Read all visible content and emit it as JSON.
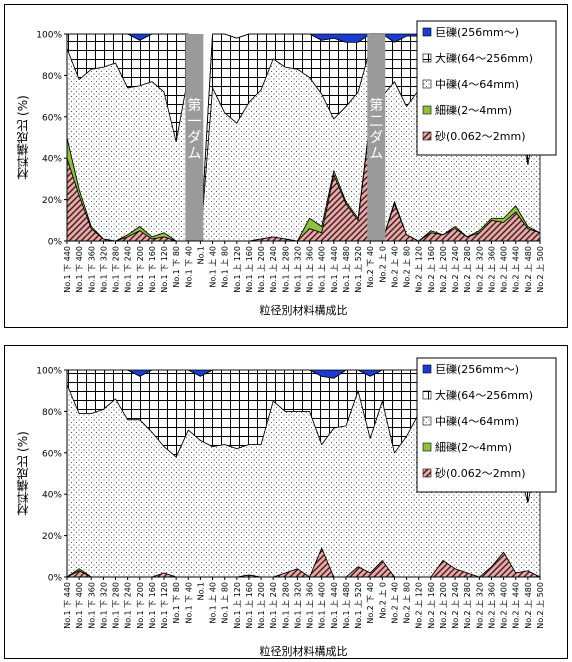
{
  "chart_data": [
    {
      "type": "area",
      "stacked": true,
      "title": "",
      "xlabel": "粒径別材料構成比",
      "ylabel": "材料構成比 (%)",
      "ylim": [
        0,
        100
      ],
      "y_ticks": [
        "0%",
        "20%",
        "40%",
        "60%",
        "80%",
        "100%"
      ],
      "legend_position": "top-right",
      "categories": [
        "No.1 下 440",
        "No.1 下 400",
        "No.1 下 360",
        "No.1 下 320",
        "No.1 下 280",
        "No.1 下 240",
        "No.1 下 200",
        "No.1 下 160",
        "No.1 下 120",
        "No.1 下 80",
        "No.1 下 40",
        "No.1",
        "No.1 上 40",
        "No.1 上 80",
        "No.1 上 120",
        "No.1 上 160",
        "No.1 上 200",
        "No.1 上 240",
        "No.1 上 280",
        "No.1 上 320",
        "No.1 上 360",
        "No.1 上 400",
        "No.1 上 440",
        "No.1 上 480",
        "No.1 上 520",
        "No.2 下 40",
        "No.2 上 0",
        "No.2 上 40",
        "No.2 上 80",
        "No.2 上 120",
        "No.2 上 160",
        "No.2 上 200",
        "No.2 上 240",
        "No.2 上 280",
        "No.2 上 320",
        "No.2 上 360",
        "No.2 上 400",
        "No.2 上 440",
        "No.2 上 480",
        "No.2 上 500"
      ],
      "series": [
        {
          "name": "砂(0.062～2mm)",
          "color": "#e8a8a8",
          "pattern": "diagonal-hatch",
          "values": [
            40,
            22,
            6,
            1,
            0,
            2,
            5,
            1,
            2,
            0,
            0,
            0,
            0,
            0,
            0,
            0,
            1,
            2,
            1,
            0,
            6,
            4,
            32,
            18,
            10,
            58,
            0,
            18,
            3,
            0,
            4,
            3,
            6,
            2,
            4,
            10,
            9,
            14,
            6,
            4
          ]
        },
        {
          "name": "細礫(2～4mm)",
          "color": "#8fc040",
          "pattern": "solid",
          "values": [
            10,
            3,
            1,
            0,
            0,
            1,
            2,
            1,
            2,
            0,
            0,
            0,
            0,
            0,
            0,
            0,
            0,
            0,
            0,
            0,
            5,
            3,
            2,
            1,
            1,
            1,
            0,
            1,
            0,
            0,
            1,
            0,
            1,
            0,
            1,
            1,
            2,
            3,
            1,
            0
          ]
        },
        {
          "name": "中礫(4～64mm)",
          "color": "#ffffff",
          "pattern": "dots",
          "values": [
            43,
            53,
            76,
            83,
            86,
            71,
            68,
            75,
            68,
            48,
            80,
            0,
            74,
            62,
            57,
            67,
            72,
            86,
            83,
            83,
            68,
            64,
            25,
            46,
            61,
            34,
            70,
            58,
            62,
            73,
            78,
            65,
            70,
            73,
            68,
            63,
            60,
            48,
            30,
            66
          ]
        },
        {
          "name": "大礫(64～256mm)",
          "color": "#ffffff",
          "pattern": "grid",
          "values": [
            7,
            22,
            17,
            16,
            14,
            26,
            22,
            23,
            28,
            52,
            20,
            0,
            26,
            38,
            41,
            33,
            27,
            12,
            16,
            17,
            21,
            26,
            39,
            31,
            24,
            7,
            30,
            19,
            34,
            26,
            17,
            32,
            23,
            25,
            27,
            26,
            26,
            34,
            63,
            30
          ]
        },
        {
          "name": "巨礫(256mm～)",
          "color": "#1a3ccf",
          "pattern": "solid",
          "values": [
            0,
            0,
            0,
            0,
            0,
            0,
            3,
            0,
            0,
            0,
            0,
            0,
            0,
            0,
            0,
            0,
            0,
            0,
            0,
            0,
            0,
            3,
            2,
            4,
            4,
            0,
            0,
            4,
            1,
            1,
            0,
            0,
            0,
            0,
            0,
            0,
            3,
            1,
            0,
            0
          ]
        }
      ],
      "dam_markers": [
        {
          "label": "第一ダム",
          "after_index": 10
        },
        {
          "label": "第二ダム",
          "after_index": 25
        }
      ]
    },
    {
      "type": "area",
      "stacked": true,
      "title": "",
      "xlabel": "粒径別材料構成比",
      "ylabel": "材料構成比 (%)",
      "ylim": [
        0,
        100
      ],
      "y_ticks": [
        "0%",
        "20%",
        "40%",
        "60%",
        "80%",
        "100%"
      ],
      "legend_position": "top-right",
      "categories": [
        "No.1 下 440",
        "No.1 下 400",
        "No.1 下 360",
        "No.1 下 320",
        "No.1 下 280",
        "No.1 下 240",
        "No.1 下 200",
        "No.1 下 160",
        "No.1 下 120",
        "No.1 下 80",
        "No.1 下 40",
        "No.1",
        "No.1 上 40",
        "No.1 上 80",
        "No.1 上 120",
        "No.1 上 160",
        "No.1 上 200",
        "No.1 上 240",
        "No.1 上 280",
        "No.1 上 320",
        "No.1 上 360",
        "No.1 上 400",
        "No.1 上 440",
        "No.1 上 480",
        "No.1 上 520",
        "No.2 下 40",
        "No.2 上 0",
        "No.2 上 40",
        "No.2 上 80",
        "No.2 上 120",
        "No.2 上 160",
        "No.2 上 200",
        "No.2 上 240",
        "No.2 上 280",
        "No.2 上 320",
        "No.2 上 360",
        "No.2 上 400",
        "No.2 上 440",
        "No.2 上 480",
        "No.2 上 500"
      ],
      "series": [
        {
          "name": "砂(0.062～2mm)",
          "color": "#e8a8a8",
          "pattern": "diagonal-hatch",
          "values": [
            0,
            3,
            0,
            0,
            0,
            0,
            0,
            0,
            2,
            0,
            0,
            0,
            0,
            0,
            0,
            1,
            0,
            0,
            2,
            4,
            0,
            14,
            0,
            0,
            5,
            2,
            8,
            0,
            0,
            0,
            0,
            8,
            4,
            2,
            0,
            5,
            12,
            2,
            3,
            0
          ]
        },
        {
          "name": "細礫(2～4mm)",
          "color": "#8fc040",
          "pattern": "solid",
          "values": [
            0,
            1,
            0,
            0,
            0,
            0,
            0,
            0,
            0,
            0,
            0,
            0,
            0,
            0,
            0,
            0,
            0,
            0,
            0,
            0,
            0,
            0,
            0,
            0,
            0,
            0,
            0,
            0,
            0,
            0,
            0,
            0,
            0,
            0,
            0,
            0,
            0,
            0,
            0,
            0
          ]
        },
        {
          "name": "中礫(4～64mm)",
          "color": "#ffffff",
          "pattern": "dots",
          "values": [
            93,
            75,
            79,
            81,
            86,
            76,
            76,
            70,
            61,
            58,
            71,
            66,
            63,
            64,
            62,
            63,
            64,
            85,
            78,
            76,
            80,
            50,
            72,
            73,
            85,
            65,
            77,
            60,
            68,
            79,
            76,
            65,
            71,
            72,
            76,
            70,
            60,
            55,
            33,
            64
          ]
        },
        {
          "name": "大礫(64～256mm)",
          "color": "#ffffff",
          "pattern": "grid",
          "values": [
            7,
            21,
            21,
            19,
            14,
            24,
            21,
            30,
            37,
            42,
            29,
            31,
            37,
            36,
            38,
            36,
            36,
            15,
            20,
            20,
            20,
            33,
            24,
            27,
            10,
            30,
            15,
            40,
            32,
            21,
            24,
            27,
            25,
            26,
            24,
            25,
            25,
            43,
            64,
            36
          ]
        },
        {
          "name": "巨礫(256mm～)",
          "color": "#1a3ccf",
          "pattern": "solid",
          "values": [
            0,
            0,
            0,
            0,
            0,
            0,
            3,
            0,
            0,
            0,
            0,
            3,
            0,
            0,
            0,
            0,
            0,
            0,
            0,
            0,
            0,
            3,
            4,
            0,
            0,
            3,
            0,
            0,
            0,
            0,
            0,
            0,
            0,
            0,
            0,
            0,
            3,
            0,
            0,
            0
          ]
        }
      ]
    }
  ]
}
